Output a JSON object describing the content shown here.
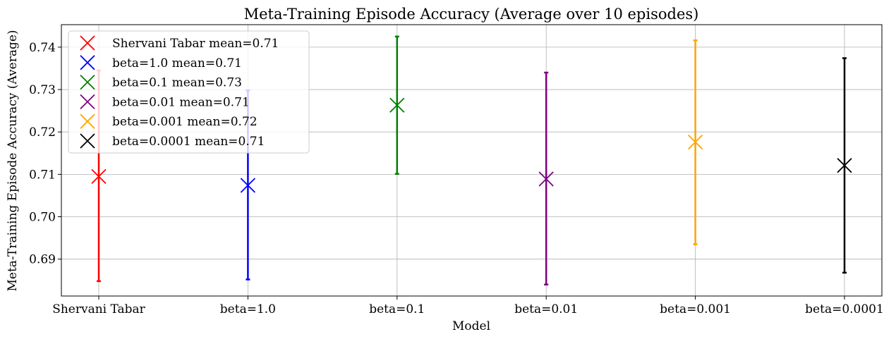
{
  "chart_data": {
    "type": "scatter",
    "title": "Meta-Training Episode Accuracy (Average over 10 episodes)",
    "xlabel": "Model",
    "ylabel": "Meta-Training Episode Accuracy (Average)",
    "categories": [
      "Shervani Tabar",
      "beta=1.0",
      "beta=0.1",
      "beta=0.01",
      "beta=0.001",
      "beta=0.0001"
    ],
    "ylim": [
      0.6813,
      0.7453
    ],
    "yticks": [
      0.69,
      0.7,
      0.71,
      0.72,
      0.73,
      0.74
    ],
    "ytick_labels": [
      "0.69",
      "0.70",
      "0.71",
      "0.72",
      "0.73",
      "0.74"
    ],
    "grid": true,
    "legend_position": "top-left",
    "series": [
      {
        "name": "Shervani Tabar mean=0.71",
        "category": "Shervani Tabar",
        "mean": 0.7095,
        "low": 0.6848,
        "high": 0.7345,
        "color": "#ff0000"
      },
      {
        "name": "beta=1.0 mean=0.71",
        "category": "beta=1.0",
        "mean": 0.7074,
        "low": 0.6852,
        "high": 0.7298,
        "color": "#0000ff"
      },
      {
        "name": "beta=0.1 mean=0.73",
        "category": "beta=0.1",
        "mean": 0.7263,
        "low": 0.7101,
        "high": 0.7425,
        "color": "#008000"
      },
      {
        "name": "beta=0.01 mean=0.71",
        "category": "beta=0.01",
        "mean": 0.7089,
        "low": 0.684,
        "high": 0.734,
        "color": "#800080"
      },
      {
        "name": "beta=0.001 mean=0.72",
        "category": "beta=0.001",
        "mean": 0.7176,
        "low": 0.6935,
        "high": 0.7416,
        "color": "#ffa500"
      },
      {
        "name": "beta=0.0001 mean=0.71",
        "category": "beta=0.0001",
        "mean": 0.7121,
        "low": 0.6868,
        "high": 0.7374,
        "color": "#000000"
      }
    ]
  }
}
